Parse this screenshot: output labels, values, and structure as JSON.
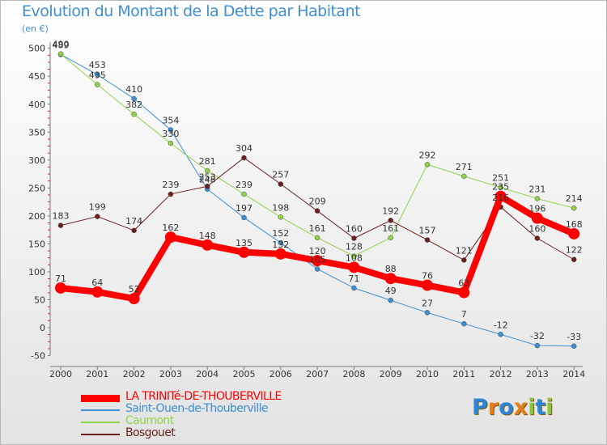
{
  "title": "Evolution du Montant de la Dette par Habitant",
  "unit": "(en €)",
  "logo": {
    "text": "Proxiti",
    "letters": [
      {
        "ch": "P",
        "color": "#2f86d6"
      },
      {
        "ch": "r",
        "color": "#e57e1a"
      },
      {
        "ch": "o",
        "color": "#2f86d6"
      },
      {
        "ch": "x",
        "color": "#e57e1a"
      },
      {
        "ch": "i",
        "color": "#8cc63f"
      },
      {
        "ch": "t",
        "color": "#2f86d6"
      },
      {
        "ch": "i",
        "color": "#8cc63f"
      }
    ]
  },
  "chart_data": {
    "type": "line",
    "title": "Evolution du Montant de la Dette par Habitant",
    "ylabel": "(en €)",
    "xlabel": "",
    "x": [
      "2000",
      "2001",
      "2002",
      "2003",
      "2004",
      "2005",
      "2006",
      "2007",
      "2008",
      "2009",
      "2010",
      "2011",
      "2012",
      "2013",
      "2014"
    ],
    "ylim": [
      -50,
      500
    ],
    "yticks": [
      -50,
      0,
      50,
      100,
      150,
      200,
      250,
      300,
      350,
      400,
      450,
      500
    ],
    "grid": false,
    "legend": "bottom-left",
    "series": [
      {
        "name": "LA TRINITé-DE-THOUBERVILLE",
        "color": "#ff0000",
        "width": 8,
        "values": [
          71,
          64,
          52,
          162,
          148,
          135,
          132,
          120,
          108,
          88,
          76,
          63,
          235,
          196,
          168
        ],
        "labels": [
          "71",
          "64",
          "52",
          "162",
          "148",
          "135",
          "132",
          "120",
          "108",
          "88",
          "76",
          "63",
          "235",
          "196",
          "168"
        ]
      },
      {
        "name": "Saint-Ouen-de-Thouberville",
        "color": "#3d8fd4",
        "width": 1,
        "values": [
          489,
          453,
          410,
          354,
          248,
          197,
          152,
          105,
          71,
          49,
          27,
          7,
          -12,
          -32,
          -33
        ],
        "labels": [
          "489",
          "453",
          "410",
          "354",
          "248",
          "197",
          "152",
          "105",
          "71",
          "49",
          "27",
          "7",
          "-12",
          "-32",
          "-33"
        ]
      },
      {
        "name": "Caumont",
        "color": "#8fd448",
        "width": 1,
        "values": [
          490,
          435,
          382,
          330,
          281,
          239,
          198,
          161,
          128,
          161,
          292,
          271,
          251,
          231,
          214
        ],
        "labels": [
          "490",
          "435",
          "382",
          "330",
          "281",
          "239",
          "198",
          "161",
          "128",
          "161",
          "292",
          "271",
          "251",
          "231",
          "214"
        ]
      },
      {
        "name": "Bosgouet",
        "color": "#6b1f1f",
        "width": 1,
        "values": [
          183,
          199,
          174,
          239,
          253,
          304,
          257,
          209,
          160,
          192,
          157,
          121,
          216,
          160,
          122
        ],
        "labels": [
          "183",
          "199",
          "174",
          "239",
          "253",
          "304",
          "257",
          "209",
          "160",
          "192",
          "157",
          "121",
          "216",
          "160",
          "122"
        ]
      }
    ]
  }
}
